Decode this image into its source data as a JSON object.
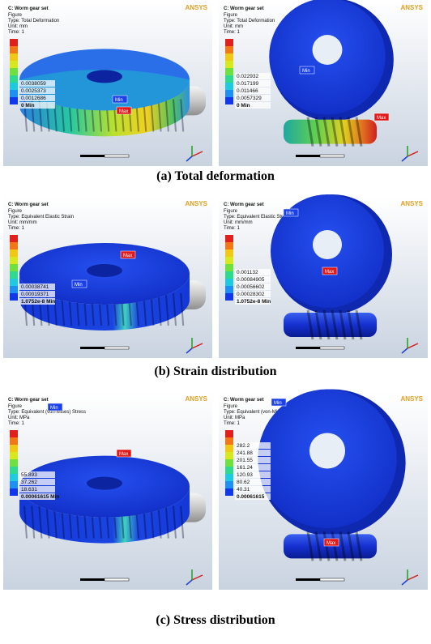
{
  "panels": [
    {
      "caption": "(a)  Total  deformation",
      "views": [
        {
          "title": "C: Worm gear set",
          "lines": [
            "Figure",
            "Type: Total Deformation",
            "Unit: mm",
            "Time: 1"
          ],
          "logo": "ANSYS",
          "legend": [
            "0.0038059",
            "0.0025373",
            "0.0012686",
            "0 Min"
          ],
          "min": "Min",
          "max": "Max"
        },
        {
          "title": "C: Worm gear set",
          "lines": [
            "Figure",
            "Type: Total Deformation",
            "Unit: mm",
            "Time: 1"
          ],
          "logo": "ANSYS",
          "legend": [
            "0.022932",
            "0.017199",
            "0.011466",
            "0.0057329",
            "0 Min"
          ],
          "min": "Min",
          "max": "Max"
        }
      ]
    },
    {
      "caption": "(b)  Strain  distribution",
      "views": [
        {
          "title": "C: Worm gear set",
          "lines": [
            "Figure",
            "Type: Equivalent Elastic Strain",
            "Unit: mm/mm",
            "Time: 1"
          ],
          "logo": "ANSYS",
          "legend": [
            "0.00038741",
            "0.00019371",
            "1.0752e-8 Min"
          ],
          "min": "Min",
          "max": "Max"
        },
        {
          "title": "C: Worm gear set",
          "lines": [
            "Figure",
            "Type: Equivalent Elastic Strain",
            "Unit: mm/mm",
            "Time: 1"
          ],
          "logo": "ANSYS",
          "legend": [
            "0.001132",
            "0.00084905",
            "0.00056602",
            "0.00028302",
            "1.0752e-8 Min"
          ],
          "min": "Min",
          "max": "Max"
        }
      ]
    },
    {
      "caption": "(c)  Stress  distribution",
      "views": [
        {
          "title": "C: Worm gear set",
          "lines": [
            "Figure",
            "Type: Equivalent (von-Mises) Stress",
            "Unit: MPa",
            "Time: 1"
          ],
          "logo": "ANSYS",
          "legend": [
            "55.893",
            "37.262",
            "18.631",
            "0.00061615 Min"
          ],
          "min": "Min",
          "max": "Max"
        },
        {
          "title": "C: Worm gear set",
          "lines": [
            "Figure",
            "Type: Equivalent (von-Mises) Stress",
            "Unit: MPa",
            "Time: 1"
          ],
          "logo": "ANSYS",
          "legend": [
            "282.2",
            "241.88",
            "201.55",
            "161.24",
            "120.93",
            "80.62",
            "40.31",
            "0.00061615"
          ],
          "min": "Min",
          "max": "Max"
        }
      ]
    }
  ]
}
